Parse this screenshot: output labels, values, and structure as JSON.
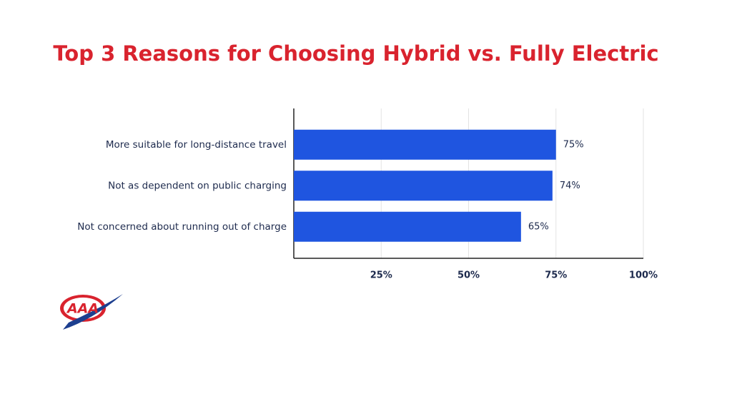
{
  "chart_data": {
    "type": "hbar",
    "title": "Top 3 Reasons for Choosing Hybrid vs. Fully Electric",
    "categories": [
      "More suitable for long-distance travel",
      "Not as dependent on public charging",
      "Not concerned about running out of charge"
    ],
    "values": [
      75,
      74,
      65
    ],
    "value_labels": [
      "75%",
      "74%",
      "65%"
    ],
    "color": "#1f55e0",
    "xlim": [
      0,
      100
    ],
    "xticks": [
      {
        "value": 25,
        "label": "25%"
      },
      {
        "value": 50,
        "label": "50%"
      },
      {
        "value": 75,
        "label": "75%"
      },
      {
        "value": 100,
        "label": "100%"
      }
    ],
    "grid": true
  },
  "logo": "AAA"
}
